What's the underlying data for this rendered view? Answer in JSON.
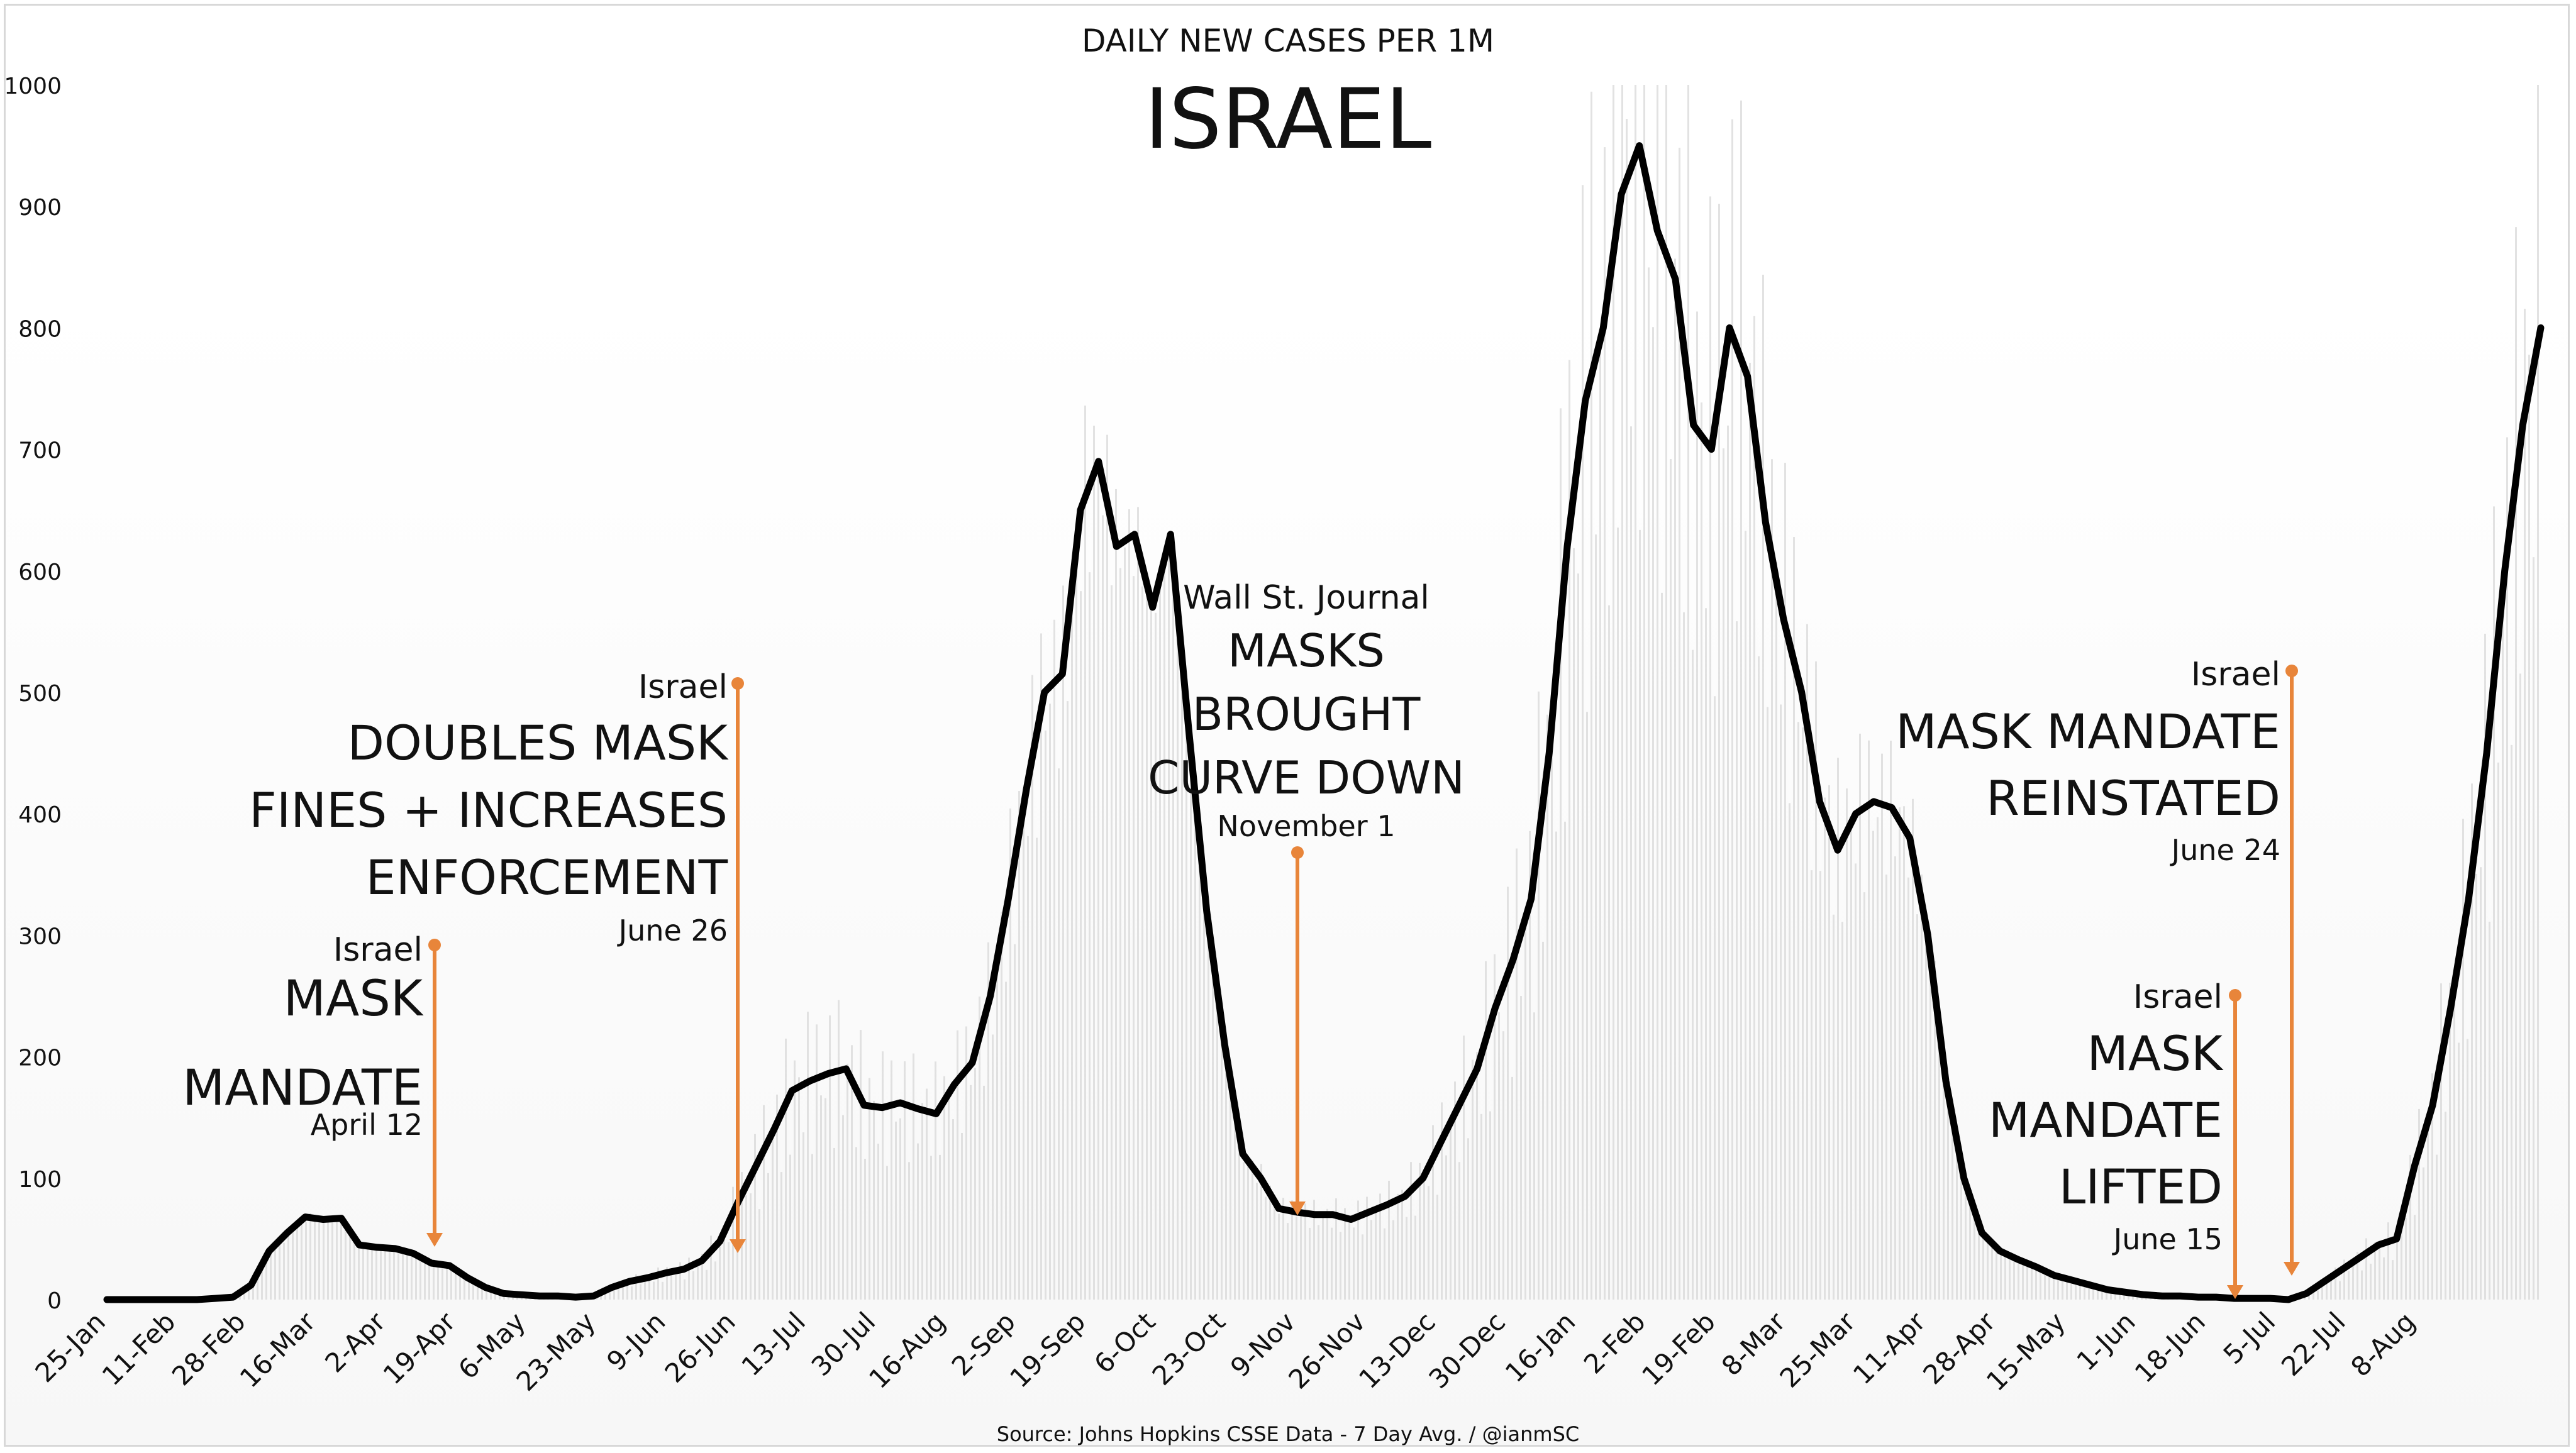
{
  "chart_data": {
    "type": "line",
    "subtitle": "DAILY NEW CASES PER 1M",
    "title": "ISRAEL",
    "source": "Source: Johns Hopkins CSSE Data - 7 Day Avg. / @ianmSC",
    "ylim": [
      0,
      1000
    ],
    "yticks": [
      "0",
      "100",
      "200",
      "300",
      "400",
      "500",
      "600",
      "700",
      "800",
      "900",
      "1000"
    ],
    "xticks": [
      "25-Jan",
      "11-Feb",
      "28-Feb",
      "16-Mar",
      "2-Apr",
      "19-Apr",
      "6-May",
      "23-May",
      "9-Jun",
      "26-Jun",
      "13-Jul",
      "30-Jul",
      "16-Aug",
      "2-Sep",
      "19-Sep",
      "6-Oct",
      "23-Oct",
      "9-Nov",
      "26-Nov",
      "13-Dec",
      "30-Dec",
      "16-Jan",
      "2-Feb",
      "19-Feb",
      "8-Mar",
      "25-Mar",
      "11-Apr",
      "28-Apr",
      "15-May",
      "1-Jun",
      "18-Jun",
      "5-Jul",
      "22-Jul",
      "8-Aug"
    ],
    "grid": false,
    "line_color": "#000000",
    "bar_color": "#d6d6d6",
    "annotation_color": "#e8853a",
    "series": [
      {
        "values": [
          0,
          0,
          0,
          0,
          0,
          0,
          1,
          2,
          12,
          40,
          55,
          68,
          66,
          67,
          45,
          43,
          42,
          38,
          30,
          28,
          18,
          10,
          5,
          4,
          3,
          3,
          2,
          3,
          10,
          15,
          18,
          22,
          25,
          32,
          48,
          80,
          110,
          140,
          172,
          180,
          186,
          190,
          160,
          158,
          162,
          157,
          153,
          177,
          195,
          250,
          330,
          420,
          500,
          515,
          650,
          690,
          620,
          630,
          570,
          630,
          470,
          320,
          210,
          120,
          100,
          75,
          72,
          70,
          70,
          66,
          72,
          78,
          85,
          100,
          130,
          160,
          190,
          240,
          280,
          330,
          450,
          620,
          740,
          800,
          910,
          950,
          880,
          840,
          720,
          700,
          800,
          760,
          640,
          560,
          500,
          410,
          370,
          400,
          410,
          405,
          380,
          300,
          180,
          100,
          55,
          40,
          33,
          27,
          20,
          16,
          12,
          8,
          6,
          4,
          3,
          3,
          2,
          2,
          1,
          1,
          1,
          0,
          5,
          15,
          25,
          35,
          45,
          50,
          110,
          160,
          240,
          330,
          450,
          600,
          720,
          800
        ]
      }
    ],
    "annotations": [
      {
        "lead": "Israel",
        "headline": [
          "MASK",
          "MANDATE"
        ],
        "date": "April 12"
      },
      {
        "lead": "Israel",
        "headline": [
          "DOUBLES MASK",
          "FINES + INCREASES",
          "ENFORCEMENT"
        ],
        "date": "June 26"
      },
      {
        "lead": "Wall St. Journal",
        "headline": [
          "MASKS",
          "BROUGHT",
          "CURVE DOWN"
        ],
        "date": "November 1"
      },
      {
        "lead": "Israel",
        "headline": [
          "MASK MANDATE",
          "REINSTATED"
        ],
        "date": "June 24"
      },
      {
        "lead": "Israel",
        "headline": [
          "MASK",
          "MANDATE",
          "LIFTED"
        ],
        "date": "June 15"
      }
    ]
  }
}
